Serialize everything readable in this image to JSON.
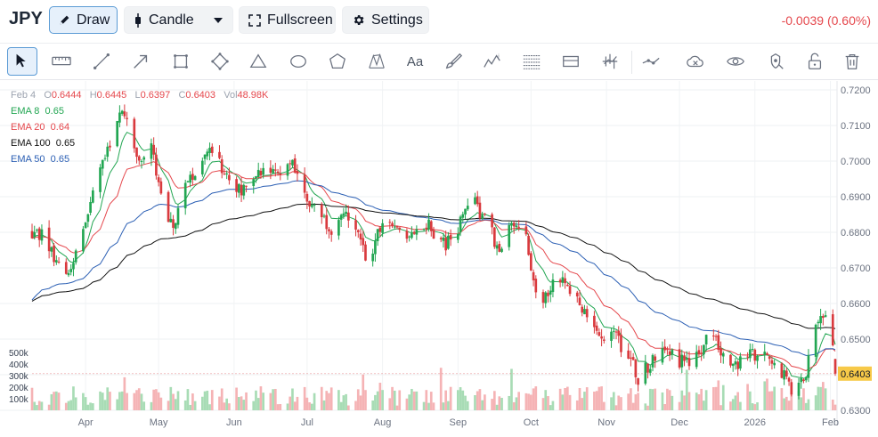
{
  "symbol": "JPY",
  "header": {
    "draw_label": "Draw",
    "candle_label": "Candle",
    "fullscreen_label": "Fullscreen",
    "settings_label": "Settings",
    "change_text": "-0.0039 (0.60%)",
    "change_color": "#e5484d"
  },
  "tools": [
    {
      "name": "cursor-tool-icon",
      "active": true
    },
    {
      "name": "ruler-tool-icon"
    },
    {
      "name": "line-tool-icon"
    },
    {
      "name": "arrow-tool-icon"
    },
    {
      "name": "rectangle-tool-icon"
    },
    {
      "name": "rotated-rectangle-tool-icon"
    },
    {
      "name": "triangle-tool-icon"
    },
    {
      "name": "ellipse-tool-icon"
    },
    {
      "name": "polygon-tool-icon"
    },
    {
      "name": "xabcd-pattern-tool-icon"
    },
    {
      "name": "text-tool-icon",
      "text": "Aa"
    },
    {
      "name": "brush-tool-icon"
    },
    {
      "name": "elliott-wave-tool-icon"
    },
    {
      "name": "fib-retracement-tool-icon"
    },
    {
      "name": "price-range-tool-icon"
    },
    {
      "name": "trend-analysis-tool-icon"
    },
    {
      "name": "connected-points-tool-icon"
    },
    {
      "name": "hide-drawings-icon"
    },
    {
      "name": "visibility-eye-icon"
    },
    {
      "name": "lock-all-icon"
    },
    {
      "name": "unlock-icon"
    },
    {
      "name": "delete-drawings-icon"
    }
  ],
  "legend": {
    "date": "Feb 4",
    "open_label": "O",
    "open": "0.6444",
    "high_label": "H",
    "high": "0.6445",
    "low_label": "L",
    "low": "0.6397",
    "close_label": "C",
    "close": "0.6403",
    "vol_label": "Vol",
    "vol": "48.98K",
    "emas": [
      {
        "label": "EMA 8",
        "value": "0.65",
        "color": "#22a652"
      },
      {
        "label": "EMA 20",
        "value": "0.64",
        "color": "#e5484d"
      },
      {
        "label": "EMA 100",
        "value": "0.65",
        "color": "#111111"
      },
      {
        "label": "EMA 50",
        "value": "0.65",
        "color": "#2b5fb4"
      }
    ]
  },
  "chart_data": {
    "type": "candlestick",
    "y_ticks": [
      "0.7200",
      "0.7100",
      "0.7000",
      "0.6900",
      "0.6800",
      "0.6700",
      "0.6600",
      "0.6500",
      "0.6400",
      "0.6300"
    ],
    "ylim": [
      0.63,
      0.72
    ],
    "volume_ticks": [
      "500k",
      "400k",
      "300k",
      "200k",
      "100k"
    ],
    "volume_lim": [
      0,
      540000
    ],
    "x_labels": [
      "Apr",
      "May",
      "Jun",
      "Jul",
      "Aug",
      "Sep",
      "Oct",
      "Nov",
      "Dec",
      "2026",
      "Feb"
    ],
    "x_label_days": [
      22,
      52,
      83,
      113,
      144,
      175,
      205,
      236,
      266,
      297,
      328
    ],
    "last_price": "0.6403",
    "up_color": "#22a652",
    "down_color": "#d93a3e",
    "start_date": "2025-03-10",
    "keyframes": [
      [
        0,
        0.68
      ],
      [
        4,
        0.679
      ],
      [
        9,
        0.673
      ],
      [
        14,
        0.669
      ],
      [
        18,
        0.674
      ],
      [
        22,
        0.683
      ],
      [
        26,
        0.692
      ],
      [
        30,
        0.702
      ],
      [
        34,
        0.708
      ],
      [
        37,
        0.715
      ],
      [
        41,
        0.705
      ],
      [
        45,
        0.699
      ],
      [
        49,
        0.704
      ],
      [
        52,
        0.695
      ],
      [
        55,
        0.687
      ],
      [
        58,
        0.68
      ],
      [
        61,
        0.689
      ],
      [
        65,
        0.696
      ],
      [
        69,
        0.698
      ],
      [
        73,
        0.702
      ],
      [
        77,
        0.699
      ],
      [
        81,
        0.695
      ],
      [
        86,
        0.692
      ],
      [
        90,
        0.696
      ],
      [
        94,
        0.697
      ],
      [
        98,
        0.695
      ],
      [
        102,
        0.698
      ],
      [
        106,
        0.701
      ],
      [
        110,
        0.696
      ],
      [
        113,
        0.688
      ],
      [
        116,
        0.688
      ],
      [
        119,
        0.685
      ],
      [
        123,
        0.681
      ],
      [
        127,
        0.683
      ],
      [
        130,
        0.685
      ],
      [
        134,
        0.678
      ],
      [
        138,
        0.671
      ],
      [
        142,
        0.679
      ],
      [
        146,
        0.682
      ],
      [
        150,
        0.681
      ],
      [
        154,
        0.68
      ],
      [
        158,
        0.681
      ],
      [
        162,
        0.683
      ],
      [
        166,
        0.679
      ],
      [
        170,
        0.677
      ],
      [
        174,
        0.68
      ],
      [
        178,
        0.686
      ],
      [
        182,
        0.69
      ],
      [
        185,
        0.684
      ],
      [
        188,
        0.681
      ],
      [
        191,
        0.676
      ],
      [
        194,
        0.676
      ],
      [
        197,
        0.683
      ],
      [
        200,
        0.683
      ],
      [
        203,
        0.678
      ],
      [
        206,
        0.667
      ],
      [
        209,
        0.66
      ],
      [
        212,
        0.664
      ],
      [
        215,
        0.668
      ],
      [
        218,
        0.667
      ],
      [
        221,
        0.664
      ],
      [
        224,
        0.661
      ],
      [
        227,
        0.658
      ],
      [
        230,
        0.652
      ],
      [
        234,
        0.651
      ],
      [
        238,
        0.653
      ],
      [
        242,
        0.648
      ],
      [
        246,
        0.644
      ],
      [
        249,
        0.639
      ],
      [
        252,
        0.642
      ],
      [
        256,
        0.644
      ],
      [
        260,
        0.647
      ],
      [
        264,
        0.645
      ],
      [
        268,
        0.643
      ],
      [
        272,
        0.644
      ],
      [
        276,
        0.649
      ],
      [
        280,
        0.651
      ],
      [
        284,
        0.646
      ],
      [
        288,
        0.642
      ],
      [
        292,
        0.645
      ],
      [
        296,
        0.646
      ],
      [
        300,
        0.645
      ],
      [
        304,
        0.645
      ],
      [
        308,
        0.641
      ],
      [
        312,
        0.635
      ],
      [
        315,
        0.637
      ],
      [
        318,
        0.64
      ],
      [
        320,
        0.649
      ],
      [
        322,
        0.655
      ],
      [
        324,
        0.658
      ],
      [
        326,
        0.657
      ],
      [
        328,
        0.652
      ],
      [
        330,
        0.6444
      ]
    ],
    "final_candle": {
      "o": 0.6444,
      "h": 0.6445,
      "l": 0.6397,
      "c": 0.6403,
      "v": 48980
    }
  }
}
